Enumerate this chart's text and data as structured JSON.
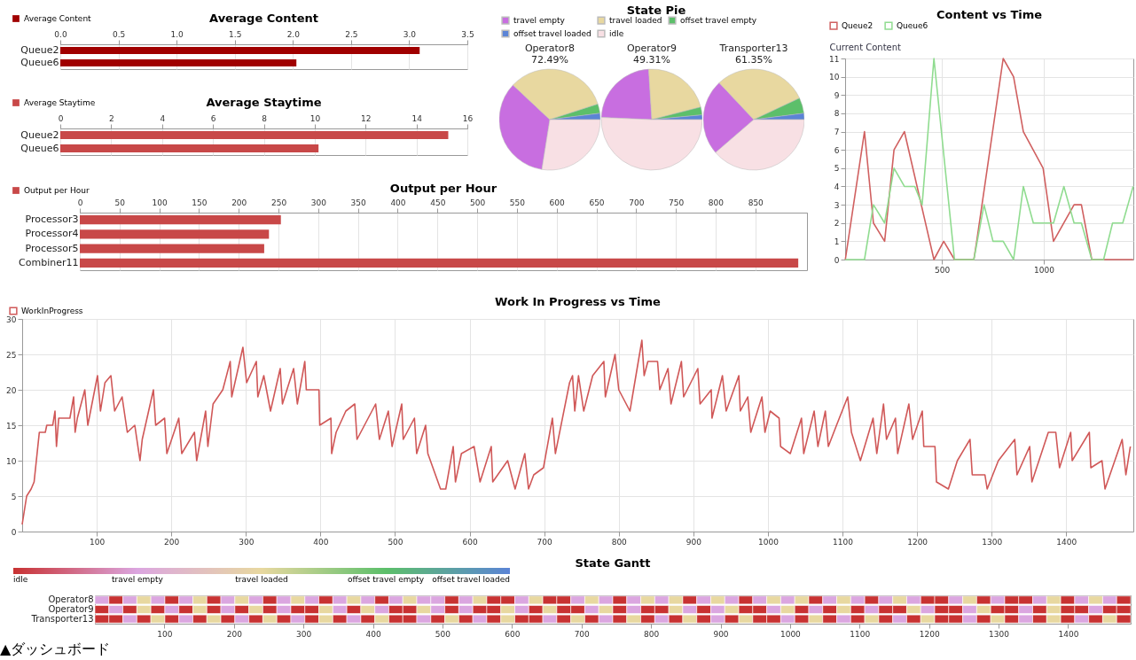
{
  "chart_data": [
    {
      "type": "bar",
      "orientation": "horizontal",
      "title": "Average Content",
      "categories": [
        "Queue2",
        "Queue6"
      ],
      "series": [
        {
          "name": "Average Content",
          "color": "#a00000",
          "values": [
            3.09,
            2.03
          ]
        }
      ],
      "xlim": [
        0,
        3.5
      ],
      "xticks": [
        {
          "value": 0,
          "label": "0.0"
        },
        0.5,
        {
          "value": 1,
          "label": "1.0"
        },
        1.5,
        {
          "value": 2,
          "label": "2.0"
        },
        2.5,
        {
          "value": 3,
          "label": "3.0"
        },
        3.5
      ],
      "grid": true,
      "legend": "top left"
    },
    {
      "type": "bar",
      "orientation": "horizontal",
      "title": "Average Staytime",
      "categories": [
        "Queue2",
        "Queue6"
      ],
      "series": [
        {
          "name": "Average Staytime",
          "color": "#c84848",
          "values": [
            15.25,
            10.15
          ]
        }
      ],
      "xlim": [
        0,
        16
      ],
      "xticks": [
        0,
        2,
        4,
        6,
        8,
        10,
        12,
        14,
        16
      ],
      "grid": true,
      "legend": "top left"
    },
    {
      "type": "bar",
      "orientation": "horizontal",
      "title": "Output per Hour",
      "categories": [
        "Processor3",
        "Processor4",
        "Processor5",
        "Combiner11"
      ],
      "series": [
        {
          "name": "Output per Hour",
          "color": "#c84848",
          "values": [
            253,
            238,
            232,
            904
          ]
        }
      ],
      "xlim": [
        0,
        915
      ],
      "xticks": [
        0,
        50,
        100,
        150,
        200,
        250,
        300,
        350,
        400,
        450,
        500,
        550,
        600,
        650,
        700,
        750,
        800,
        850
      ],
      "grid": true,
      "legend": "top left"
    },
    {
      "type": "pie",
      "title": "State Pie",
      "categories": [
        "travel empty",
        "travel loaded",
        "offset travel empty",
        "offset travel loaded",
        "idle"
      ],
      "colors": [
        "#c86ee0",
        "#e8d8a0",
        "#5cbf6a",
        "#5b84d6",
        "#f8e0e4"
      ],
      "legend": "top",
      "series": [
        {
          "name": "Operator8",
          "values": [
            34.49,
            33,
            3,
            2,
            27.51
          ]
        },
        {
          "name": "Operator9",
          "values": [
            23.31,
            22,
            2.5,
            1.5,
            50.69
          ]
        },
        {
          "name": "Transporter13",
          "values": [
            24.35,
            30,
            5,
            2,
            38.65
          ]
        }
      ],
      "annotations": [
        "72.49%",
        "49.31%",
        "61.35%"
      ]
    },
    {
      "type": "line",
      "title": "Content vs Time",
      "ylabel": "Current Content",
      "xlim": [
        25,
        1440
      ],
      "xticks": [
        500,
        1000
      ],
      "ylim": [
        0,
        11
      ],
      "yticks": [
        0,
        1,
        2,
        3,
        4,
        5,
        6,
        7,
        8,
        9,
        10,
        11
      ],
      "grid": true,
      "legend": "top left",
      "series": [
        {
          "name": "Queue2",
          "color": "#d06060",
          "x": [
            26,
            120,
            164,
            219,
            265,
            316,
            461,
            509,
            562,
            657,
            671,
            801,
            852,
            900,
            997,
            1048,
            1149,
            1185,
            1236,
            1439
          ],
          "values": [
            0,
            7,
            2,
            1,
            6,
            7,
            0,
            1,
            0,
            0,
            1,
            11,
            10,
            7,
            5,
            1,
            3,
            3,
            0,
            0
          ]
        },
        {
          "name": "Queue6",
          "color": "#90dc90",
          "x": [
            26,
            120,
            164,
            219,
            265,
            316,
            367,
            403,
            461,
            562,
            657,
            707,
            751,
            801,
            852,
            900,
            949,
            1048,
            1099,
            1149,
            1185,
            1236,
            1294,
            1338,
            1388,
            1439
          ],
          "values": [
            0,
            0,
            3,
            2,
            5,
            4,
            4,
            3,
            11,
            0,
            0,
            3,
            1,
            1,
            0,
            4,
            2,
            2,
            4,
            2,
            2,
            0,
            0,
            2,
            2,
            4
          ]
        }
      ]
    },
    {
      "type": "line",
      "title": "Work In Progress vs Time",
      "xlim": [
        0,
        1490
      ],
      "xticks": [
        100,
        200,
        300,
        400,
        500,
        600,
        700,
        800,
        900,
        1000,
        1100,
        1200,
        1300,
        1400
      ],
      "ylim": [
        0,
        30
      ],
      "yticks": [
        0,
        5,
        10,
        15,
        20,
        25,
        30
      ],
      "grid": true,
      "legend": "top left",
      "series": [
        {
          "name": "WorkInProgress",
          "color": "#d05858",
          "x": [
            0,
            6,
            12,
            16,
            23,
            31,
            33,
            41,
            44,
            46,
            49,
            64,
            69,
            71,
            74,
            84,
            88,
            101,
            105,
            111,
            119,
            124,
            134,
            141,
            151,
            158,
            161,
            176,
            179,
            191,
            194,
            210,
            214,
            231,
            234,
            246,
            249,
            256,
            269,
            279,
            281,
            296,
            301,
            314,
            316,
            324,
            333,
            346,
            349,
            364,
            369,
            379,
            381,
            398,
            399,
            414,
            415,
            421,
            434,
            446,
            449,
            474,
            479,
            491,
            496,
            509,
            511,
            526,
            529,
            541,
            544,
            561,
            568,
            578,
            581,
            589,
            606,
            614,
            629,
            631,
            651,
            661,
            674,
            679,
            686,
            699,
            711,
            715,
            734,
            738,
            741,
            746,
            753,
            765,
            780,
            782,
            795,
            800,
            815,
            831,
            834,
            839,
            852,
            855,
            866,
            870,
            884,
            887,
            906,
            909,
            924,
            925,
            939,
            944,
            961,
            963,
            973,
            977,
            992,
            996,
            1003,
            1015,
            1017,
            1030,
            1045,
            1048,
            1062,
            1067,
            1077,
            1081,
            1092,
            1107,
            1112,
            1124,
            1141,
            1146,
            1155,
            1159,
            1171,
            1174,
            1189,
            1194,
            1207,
            1209,
            1224,
            1226,
            1242,
            1254,
            1271,
            1274,
            1291,
            1294,
            1309,
            1331,
            1334,
            1351,
            1354,
            1376,
            1386,
            1391,
            1406,
            1408,
            1431,
            1433,
            1448,
            1452,
            1475,
            1480,
            1486
          ],
          "values": [
            1,
            5,
            6,
            7,
            14,
            14,
            15,
            15,
            17,
            12,
            16,
            16,
            19,
            14,
            16,
            20,
            15,
            22,
            17,
            21,
            22,
            17,
            19,
            14,
            15,
            10,
            13,
            20,
            15,
            16,
            11,
            16,
            11,
            14,
            10,
            17,
            12,
            18,
            20,
            24,
            19,
            26,
            21,
            24,
            19,
            22,
            17,
            23,
            18,
            23,
            18,
            24,
            20,
            20,
            15,
            16,
            11,
            14,
            17,
            18,
            13,
            18,
            13,
            17,
            12,
            18,
            13,
            16,
            11,
            15,
            11,
            6,
            6,
            12,
            7,
            11,
            12,
            7,
            12,
            7,
            10,
            6,
            11,
            6,
            8,
            9,
            16,
            11,
            21,
            22,
            17,
            22,
            17,
            22,
            24,
            19,
            25,
            20,
            17,
            27,
            22,
            24,
            24,
            20,
            23,
            18,
            24,
            19,
            23,
            18,
            20,
            16,
            22,
            17,
            22,
            17,
            19,
            14,
            19,
            14,
            17,
            16,
            12,
            11,
            16,
            11,
            17,
            12,
            17,
            12,
            15,
            19,
            14,
            10,
            16,
            11,
            18,
            13,
            16,
            11,
            18,
            13,
            17,
            12,
            12,
            7,
            6,
            10,
            13,
            8,
            8,
            6,
            10,
            13,
            8,
            12,
            7,
            14,
            14,
            9,
            14,
            10,
            14,
            9,
            10,
            6,
            13,
            8,
            12
          ]
        }
      ]
    },
    {
      "type": "heatmap",
      "title": "State Gantt",
      "annotations": [
        "▲ダッシュボード"
      ],
      "xlim": [
        0,
        1490
      ],
      "xticks": [
        100,
        200,
        300,
        400,
        500,
        600,
        700,
        800,
        900,
        1000,
        1100,
        1200,
        1300,
        1400
      ],
      "clim": [
        0,
        4
      ],
      "cticks": [
        {
          "value": 0,
          "label": "idle"
        },
        {
          "value": 1,
          "label": "travel empty"
        },
        {
          "value": 2,
          "label": "travel loaded"
        },
        {
          "value": 3,
          "label": "offset travel empty"
        },
        {
          "value": 4,
          "label": "offset travel loaded"
        }
      ],
      "colors": [
        "#c83232",
        "#dba6e0",
        "#e8d8a0",
        "#5cbf6a",
        "#5b84d6"
      ],
      "y_categories": [
        "Operator8",
        "Operator9",
        "Transporter13"
      ],
      "cells": [
        [
          1,
          0,
          1,
          2,
          1,
          0,
          1,
          2,
          0,
          1,
          2,
          1,
          0,
          1,
          2,
          1,
          0,
          1,
          2,
          1,
          0,
          1,
          2,
          1,
          1,
          0,
          1,
          2,
          0,
          0,
          1,
          2,
          0,
          0,
          1,
          2,
          1,
          0,
          1,
          2,
          1,
          2,
          0,
          1,
          2,
          1,
          0,
          1,
          2,
          1,
          2,
          0,
          1,
          2,
          1,
          0,
          1,
          2,
          1,
          0,
          0,
          1,
          2,
          0,
          1,
          0,
          0,
          1,
          2,
          0,
          1,
          2,
          1,
          0
        ],
        [
          0,
          1,
          0,
          2,
          0,
          1,
          0,
          2,
          0,
          1,
          0,
          2,
          0,
          1,
          0,
          0,
          2,
          1,
          0,
          2,
          1,
          0,
          0,
          2,
          1,
          0,
          1,
          0,
          0,
          2,
          1,
          0,
          2,
          0,
          0,
          1,
          2,
          0,
          1,
          0,
          0,
          2,
          1,
          0,
          1,
          2,
          0,
          0,
          1,
          2,
          0,
          1,
          0,
          2,
          0,
          1,
          0,
          0,
          2,
          1,
          0,
          0,
          1,
          2,
          0,
          0,
          1,
          0,
          2,
          0,
          0,
          1,
          0,
          0
        ],
        [
          0,
          0,
          1,
          0,
          2,
          0,
          1,
          0,
          2,
          0,
          1,
          0,
          2,
          0,
          1,
          0,
          2,
          0,
          1,
          0,
          2,
          0,
          0,
          1,
          0,
          2,
          0,
          1,
          0,
          2,
          0,
          0,
          1,
          0,
          2,
          0,
          1,
          0,
          2,
          0,
          1,
          0,
          2,
          0,
          1,
          0,
          2,
          0,
          0,
          1,
          0,
          2,
          0,
          1,
          0,
          2,
          0,
          1,
          0,
          2,
          0,
          0,
          1,
          0,
          2,
          0,
          1,
          0,
          2,
          0,
          1,
          0,
          2,
          0
        ]
      ]
    }
  ]
}
